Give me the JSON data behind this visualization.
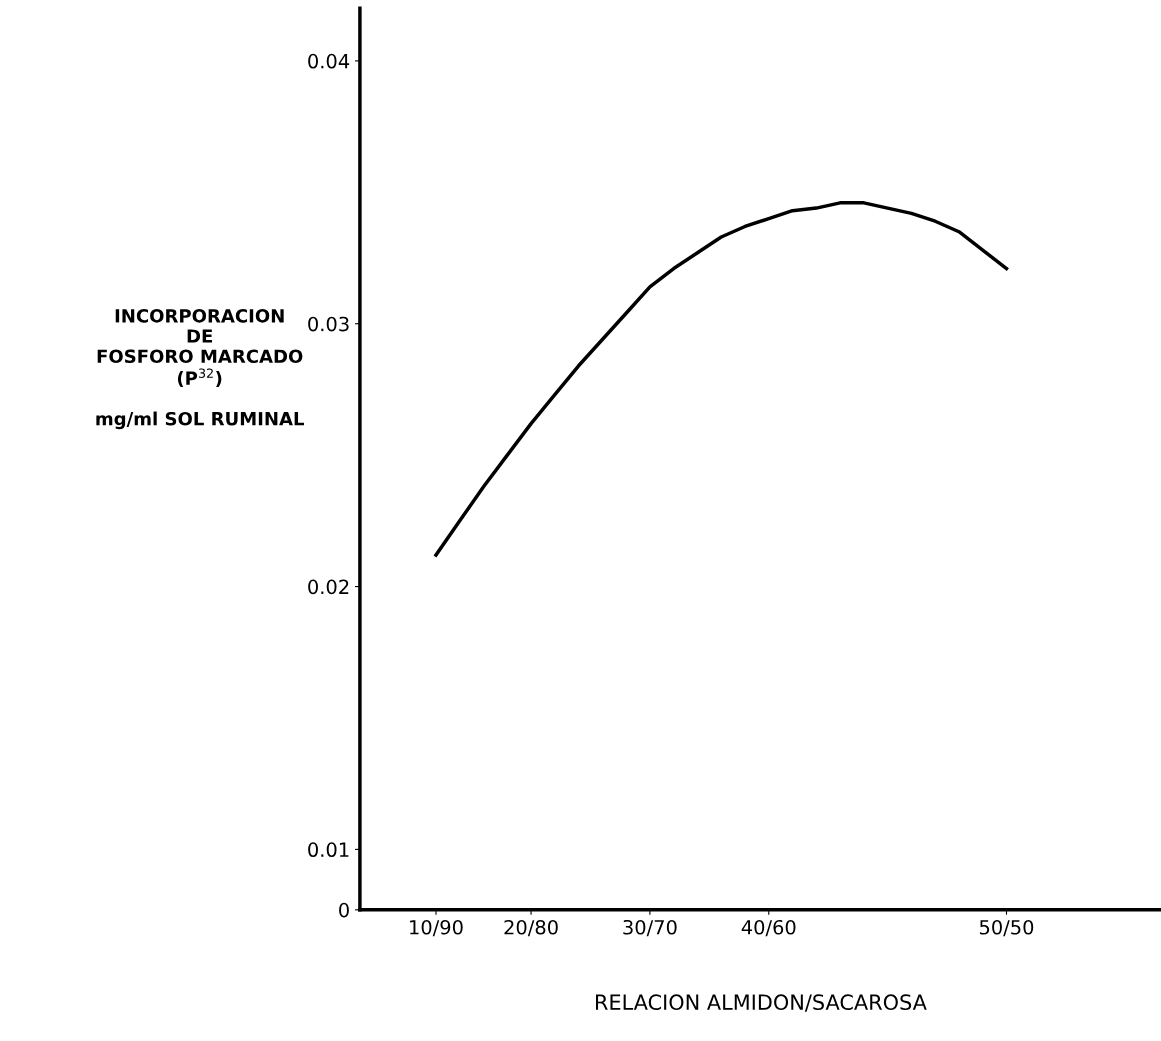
{
  "chart_data": {
    "type": "line",
    "xlabel": "RELACION ALMIDON/SACAROSA",
    "ylabel": "INCORPORACION\nDE\nFOSFORO MARCADO\n(P$^{32}$)\n\nmg/ml SOL RUMINAL",
    "categories": [
      "10/90",
      null,
      null,
      null,
      "20/80",
      null,
      null,
      null,
      null,
      "30/70",
      null,
      null,
      null,
      null,
      "40/60",
      null,
      null,
      null,
      null,
      null,
      null,
      null,
      null,
      null,
      "50/50"
    ],
    "series": [
      {
        "color": "#000000",
        "values": [
          0.0212,
          0.0225,
          0.0238,
          0.025,
          0.0262,
          0.0273,
          0.0284,
          0.0294,
          0.0304,
          0.0314,
          0.0321,
          0.0327,
          0.0333,
          0.0337,
          0.034,
          0.0343,
          0.0344,
          0.0346,
          0.0346,
          0.0344,
          0.0342,
          0.0339,
          0.0335,
          0.0328,
          0.0321
        ]
      }
    ],
    "ylim": [
      0.0077,
      0.042
    ],
    "yticks": [
      {
        "value": 0.0077,
        "label": "0"
      },
      0.01,
      0.02,
      0.03,
      0.04
    ],
    "grid": false,
    "legend": false,
    "marker": "none",
    "line_style": "solid"
  }
}
